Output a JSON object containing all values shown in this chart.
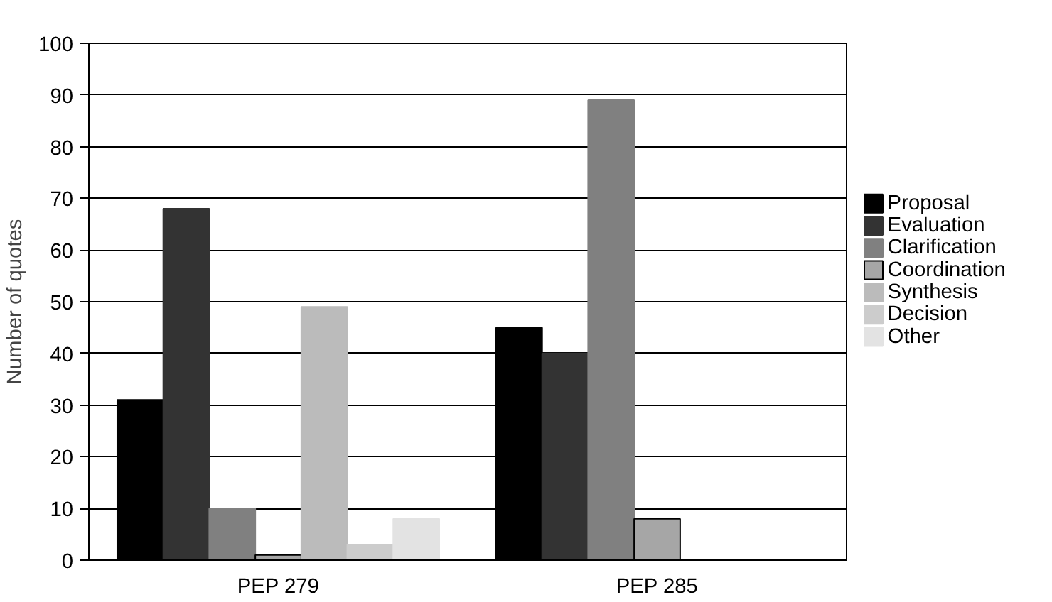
{
  "chart_data": {
    "type": "bar",
    "ylabel": "Number of quotes",
    "categories": [
      "PEP 279",
      "PEP 285"
    ],
    "series": [
      {
        "name": "Proposal",
        "color": "#000000",
        "values": [
          31,
          45
        ]
      },
      {
        "name": "Evaluation",
        "color": "#333333",
        "values": [
          68,
          40
        ]
      },
      {
        "name": "Clarification",
        "color": "#808080",
        "values": [
          10,
          89
        ]
      },
      {
        "name": "Coordination",
        "color": "#a6a6a6",
        "values": [
          1,
          8
        ]
      },
      {
        "name": "Synthesis",
        "color": "#bbbbbb",
        "values": [
          49,
          0
        ]
      },
      {
        "name": "Decision",
        "color": "#cccccc",
        "values": [
          3,
          0
        ]
      },
      {
        "name": "Other",
        "color": "#e3e3e3",
        "values": [
          8,
          0
        ]
      }
    ],
    "ylim": [
      0,
      100
    ],
    "yticks": [
      0,
      10,
      20,
      30,
      40,
      50,
      60,
      70,
      80,
      90,
      100
    ],
    "grid": "y",
    "legend": "right"
  }
}
